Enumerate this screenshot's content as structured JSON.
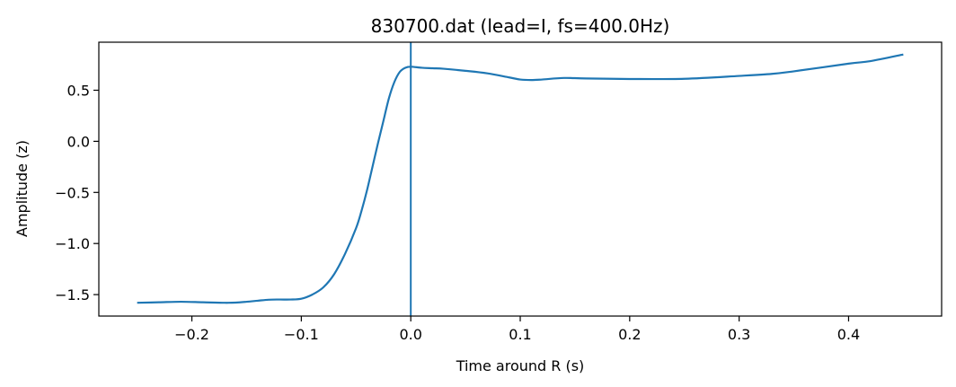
{
  "chart_data": {
    "type": "line",
    "title": "830700.dat (lead=I, fs=400.0Hz)",
    "xlabel": "Time around R (s)",
    "ylabel": "Amplitude (z)",
    "xlim": [
      -0.285,
      0.485
    ],
    "ylim": [
      -1.71,
      0.97
    ],
    "xticks": [
      -0.2,
      -0.1,
      0.0,
      0.1,
      0.2,
      0.3,
      0.4
    ],
    "xtick_labels": [
      "−0.2",
      "−0.1",
      "0.0",
      "0.1",
      "0.2",
      "0.3",
      "0.4"
    ],
    "yticks": [
      -1.5,
      -1.0,
      -0.5,
      0.0,
      0.5
    ],
    "ytick_labels": [
      "−1.5",
      "−1.0",
      "−0.5",
      "0.0",
      "0.5"
    ],
    "grid": false,
    "line_color": "#1f77b4",
    "vline": {
      "x": 0.0,
      "color": "#1f77b4"
    },
    "series": [
      {
        "x": [
          -0.25,
          -0.23,
          -0.21,
          -0.19,
          -0.17,
          -0.16,
          -0.15,
          -0.14,
          -0.13,
          -0.12,
          -0.11,
          -0.1,
          -0.09,
          -0.08,
          -0.07,
          -0.06,
          -0.05,
          -0.045,
          -0.04,
          -0.035,
          -0.03,
          -0.025,
          -0.02,
          -0.015,
          -0.01,
          -0.005,
          0.0,
          0.01,
          0.02,
          0.03,
          0.05,
          0.07,
          0.09,
          0.1,
          0.11,
          0.12,
          0.14,
          0.16,
          0.2,
          0.25,
          0.3,
          0.33,
          0.35,
          0.4,
          0.42,
          0.45
        ],
        "y": [
          -1.58,
          -1.575,
          -1.57,
          -1.575,
          -1.58,
          -1.578,
          -1.57,
          -1.56,
          -1.55,
          -1.548,
          -1.548,
          -1.54,
          -1.5,
          -1.43,
          -1.3,
          -1.1,
          -0.85,
          -0.68,
          -0.48,
          -0.25,
          -0.02,
          0.2,
          0.42,
          0.58,
          0.68,
          0.72,
          0.73,
          0.72,
          0.715,
          0.71,
          0.69,
          0.665,
          0.625,
          0.605,
          0.6,
          0.605,
          0.62,
          0.615,
          0.61,
          0.612,
          0.64,
          0.66,
          0.685,
          0.76,
          0.785,
          0.85
        ]
      }
    ]
  }
}
